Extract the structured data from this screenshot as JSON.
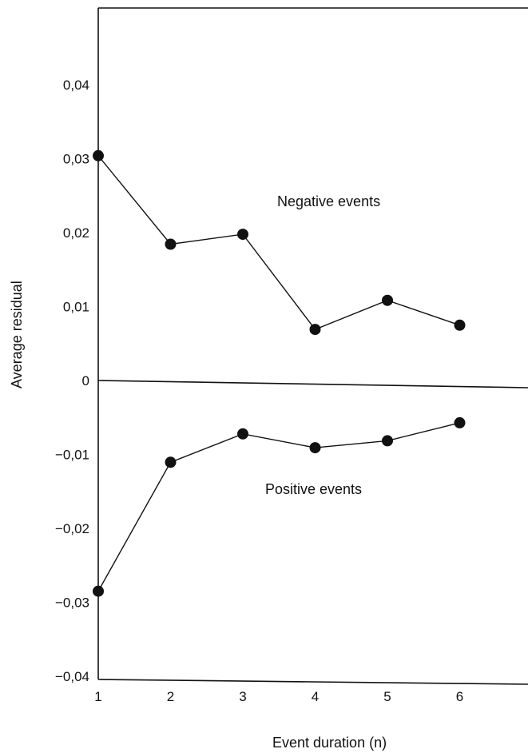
{
  "chart_data": {
    "type": "line",
    "title": "",
    "xlabel": "Event duration (n)",
    "ylabel": "Average residual",
    "x_ticks": [
      "1",
      "2",
      "3",
      "4",
      "5",
      "6"
    ],
    "y_ticks": [
      "0,04",
      "0,03",
      "0,02",
      "0,01",
      "0",
      "−0,01",
      "−0,02",
      "−0,03",
      "−0,04"
    ],
    "ylim": [
      -0.04,
      0.04
    ],
    "xlim": [
      1,
      7
    ],
    "zero_line": true,
    "series": [
      {
        "name": "Negative events",
        "x": [
          1,
          2,
          3,
          4,
          5,
          6
        ],
        "y": [
          0.0304,
          0.0186,
          0.0201,
          0.0074,
          0.0115,
          0.0083
        ]
      },
      {
        "name": "Positive events",
        "x": [
          1,
          2,
          3,
          4,
          5,
          6
        ],
        "y": [
          -0.0285,
          -0.0109,
          -0.0069,
          -0.0086,
          -0.0075,
          -0.0049
        ]
      }
    ]
  }
}
